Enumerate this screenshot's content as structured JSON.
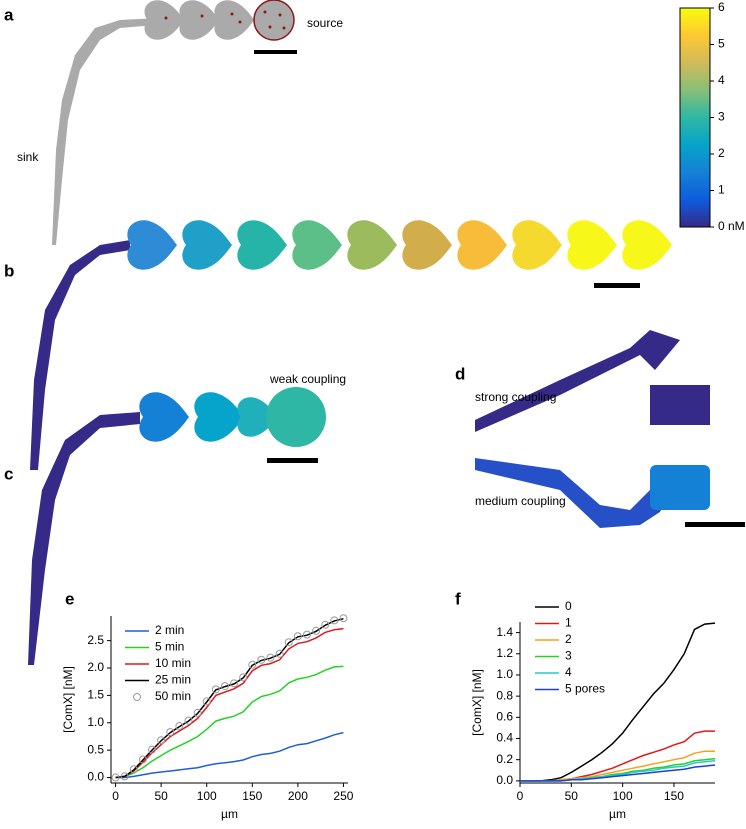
{
  "figure": {
    "panel_labels": [
      "a",
      "b",
      "c",
      "d",
      "e",
      "f"
    ],
    "source": "source",
    "sink": "sink",
    "weak": "weak coupling",
    "strong": "strong coupling",
    "medium": "medium coupling"
  },
  "chart_data": [
    {
      "type": "colorbar",
      "ylim": [
        0,
        6
      ],
      "yticks": [
        {
          "value": 0,
          "label": "0 nM"
        },
        1,
        2,
        3,
        4,
        5,
        6
      ],
      "colors": [
        "#352a87",
        "#0f5cdd",
        "#1481d6",
        "#06a4ca",
        "#2eb7a4",
        "#87bf77",
        "#d1bb59",
        "#fec832",
        "#f9fb0e"
      ]
    },
    {
      "type": "line",
      "xlabel": "µm",
      "ylabel": "[ComX] [nM]",
      "x": [
        0,
        10,
        20,
        30,
        40,
        50,
        60,
        70,
        80,
        90,
        100,
        110,
        120,
        130,
        140,
        150,
        160,
        170,
        180,
        190,
        200,
        210,
        220,
        230,
        240,
        250
      ],
      "xlim": [
        -5,
        255
      ],
      "xticks": [
        0,
        50,
        100,
        150,
        200,
        250
      ],
      "ylim": [
        -0.1,
        2.95
      ],
      "yticks": [
        {
          "value": 0,
          "label": "0.0"
        },
        0.5,
        {
          "value": 1,
          "label": "1.0"
        },
        1.5,
        {
          "value": 2,
          "label": "2.0"
        },
        2.5
      ],
      "series": [
        {
          "name": "2 min",
          "color": "#1f5fd6",
          "values": [
            0,
            0,
            0.02,
            0.05,
            0.08,
            0.1,
            0.12,
            0.14,
            0.16,
            0.18,
            0.22,
            0.25,
            0.27,
            0.29,
            0.32,
            0.38,
            0.42,
            0.44,
            0.48,
            0.55,
            0.6,
            0.62,
            0.67,
            0.72,
            0.78,
            0.82
          ]
        },
        {
          "name": "5 min",
          "color": "#22d422",
          "values": [
            0,
            0.02,
            0.08,
            0.18,
            0.3,
            0.4,
            0.5,
            0.58,
            0.66,
            0.75,
            0.88,
            1.03,
            1.08,
            1.12,
            1.2,
            1.38,
            1.48,
            1.52,
            1.58,
            1.73,
            1.8,
            1.83,
            1.88,
            1.96,
            2.02,
            2.03
          ]
        },
        {
          "name": "10 min",
          "color": "#e01818",
          "values": [
            0,
            0.02,
            0.12,
            0.28,
            0.45,
            0.6,
            0.75,
            0.85,
            0.95,
            1.08,
            1.28,
            1.5,
            1.56,
            1.62,
            1.72,
            1.95,
            2.05,
            2.08,
            2.15,
            2.35,
            2.45,
            2.48,
            2.55,
            2.65,
            2.7,
            2.72
          ]
        },
        {
          "name": "25 min",
          "color": "#000000",
          "values": [
            0,
            0.02,
            0.14,
            0.32,
            0.5,
            0.67,
            0.82,
            0.93,
            1.03,
            1.17,
            1.38,
            1.6,
            1.66,
            1.71,
            1.82,
            2.05,
            2.14,
            2.18,
            2.25,
            2.46,
            2.57,
            2.6,
            2.67,
            2.78,
            2.86,
            2.9
          ]
        },
        {
          "name": "50 min",
          "color": "#999999",
          "marker": "circle",
          "values": [
            0,
            0.02,
            0.15,
            0.33,
            0.51,
            0.68,
            0.83,
            0.94,
            1.04,
            1.18,
            1.39,
            1.61,
            1.67,
            1.72,
            1.83,
            2.06,
            2.15,
            2.19,
            2.26,
            2.47,
            2.58,
            2.61,
            2.68,
            2.79,
            2.87,
            2.91
          ]
        }
      ]
    },
    {
      "type": "line",
      "xlabel": "µm",
      "ylabel": "[ComX] [nM]",
      "x": [
        0,
        10,
        20,
        30,
        40,
        50,
        60,
        70,
        80,
        90,
        100,
        110,
        120,
        130,
        140,
        150,
        160,
        170,
        180,
        190
      ],
      "xlim": [
        0,
        190
      ],
      "xticks": [
        0,
        50,
        100,
        150
      ],
      "ylim": [
        -0.02,
        1.5
      ],
      "yticks": [
        {
          "value": 0,
          "label": "0.0"
        },
        0.2,
        0.4,
        0.6,
        0.8,
        {
          "value": 1,
          "label": "1.0"
        },
        1.2,
        1.4
      ],
      "series": [
        {
          "name": "0",
          "color": "#000000",
          "values": [
            0,
            0,
            0,
            0.01,
            0.03,
            0.08,
            0.14,
            0.2,
            0.27,
            0.35,
            0.45,
            0.58,
            0.7,
            0.82,
            0.92,
            1.05,
            1.2,
            1.43,
            1.48,
            1.49
          ]
        },
        {
          "name": "1",
          "color": "#e01818",
          "values": [
            0,
            0,
            0,
            0,
            0.01,
            0.02,
            0.04,
            0.06,
            0.09,
            0.12,
            0.16,
            0.2,
            0.24,
            0.27,
            0.3,
            0.34,
            0.37,
            0.45,
            0.47,
            0.47
          ]
        },
        {
          "name": "2",
          "color": "#f5a21a",
          "values": [
            0,
            0,
            0,
            0,
            0.01,
            0.02,
            0.03,
            0.04,
            0.06,
            0.08,
            0.1,
            0.12,
            0.14,
            0.16,
            0.18,
            0.2,
            0.22,
            0.26,
            0.28,
            0.28
          ]
        },
        {
          "name": "3",
          "color": "#22d422",
          "values": [
            0,
            0,
            0,
            0,
            0,
            0.01,
            0.02,
            0.03,
            0.04,
            0.06,
            0.07,
            0.09,
            0.1,
            0.12,
            0.13,
            0.15,
            0.16,
            0.19,
            0.2,
            0.21
          ]
        },
        {
          "name": "4",
          "color": "#22cccc",
          "values": [
            0,
            0,
            0,
            0,
            0,
            0.01,
            0.02,
            0.03,
            0.04,
            0.05,
            0.06,
            0.08,
            0.09,
            0.1,
            0.12,
            0.13,
            0.14,
            0.17,
            0.18,
            0.19
          ]
        },
        {
          "name": "5 pores",
          "color": "#1f3fd6",
          "values": [
            0,
            0,
            0,
            0,
            0,
            0.01,
            0.01,
            0.02,
            0.03,
            0.04,
            0.05,
            0.06,
            0.07,
            0.08,
            0.09,
            0.1,
            0.11,
            0.13,
            0.14,
            0.15
          ]
        }
      ]
    }
  ]
}
